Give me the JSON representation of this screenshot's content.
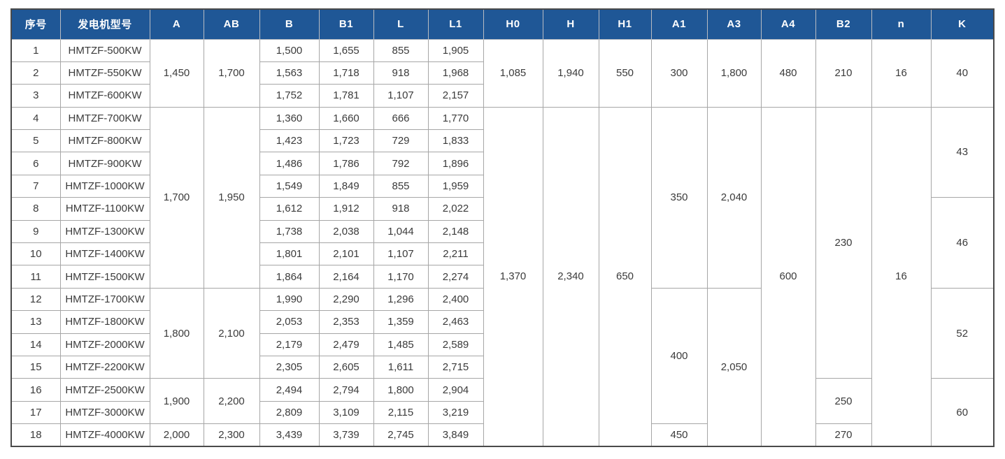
{
  "colors": {
    "header_bg": "#1f5796",
    "header_text": "#ffffff",
    "header_line": "#b8bcc2",
    "grid_line": "#a6a6a6",
    "outer_border": "#4a4a4a",
    "cell_text": "#3b3b3b",
    "cell_bg": "#ffffff"
  },
  "table": {
    "headers": [
      "序号",
      "发电机型号",
      "A",
      "AB",
      "B",
      "B1",
      "L",
      "L1",
      "H0",
      "H",
      "H1",
      "A1",
      "A3",
      "A4",
      "B2",
      "n",
      "K"
    ],
    "rows": [
      [
        {
          "v": "1"
        },
        {
          "v": "HMTZF-500KW"
        },
        {
          "v": "1,450",
          "rs": 3
        },
        {
          "v": "1,700",
          "rs": 3
        },
        {
          "v": "1,500"
        },
        {
          "v": "1,655"
        },
        {
          "v": "855"
        },
        {
          "v": "1,905"
        },
        {
          "v": "1,085",
          "rs": 3
        },
        {
          "v": "1,940",
          "rs": 3
        },
        {
          "v": "550",
          "rs": 3
        },
        {
          "v": "300",
          "rs": 3
        },
        {
          "v": "1,800",
          "rs": 3
        },
        {
          "v": "480",
          "rs": 3
        },
        {
          "v": "210",
          "rs": 3
        },
        {
          "v": "16",
          "rs": 3
        },
        {
          "v": "40",
          "rs": 3
        }
      ],
      [
        {
          "v": "2"
        },
        {
          "v": "HMTZF-550KW"
        },
        {
          "v": "1,563"
        },
        {
          "v": "1,718"
        },
        {
          "v": "918"
        },
        {
          "v": "1,968"
        }
      ],
      [
        {
          "v": "3"
        },
        {
          "v": "HMTZF-600KW"
        },
        {
          "v": "1,752"
        },
        {
          "v": "1,781"
        },
        {
          "v": "1,107"
        },
        {
          "v": "2,157"
        }
      ],
      [
        {
          "v": "4"
        },
        {
          "v": "HMTZF-700KW"
        },
        {
          "v": "1,700",
          "rs": 8
        },
        {
          "v": "1,950",
          "rs": 8
        },
        {
          "v": "1,360"
        },
        {
          "v": "1,660"
        },
        {
          "v": "666"
        },
        {
          "v": "1,770"
        },
        {
          "v": "1,370",
          "rs": 15
        },
        {
          "v": "2,340",
          "rs": 15
        },
        {
          "v": "650",
          "rs": 15
        },
        {
          "v": "350",
          "rs": 8
        },
        {
          "v": "2,040",
          "rs": 8
        },
        {
          "v": "600",
          "rs": 15
        },
        {
          "v": "230",
          "rs": 12
        },
        {
          "v": "16",
          "rs": 15
        },
        {
          "v": "43",
          "rs": 4
        }
      ],
      [
        {
          "v": "5"
        },
        {
          "v": "HMTZF-800KW"
        },
        {
          "v": "1,423"
        },
        {
          "v": "1,723"
        },
        {
          "v": "729"
        },
        {
          "v": "1,833"
        }
      ],
      [
        {
          "v": "6"
        },
        {
          "v": "HMTZF-900KW"
        },
        {
          "v": "1,486"
        },
        {
          "v": "1,786"
        },
        {
          "v": "792"
        },
        {
          "v": "1,896"
        }
      ],
      [
        {
          "v": "7"
        },
        {
          "v": "HMTZF-1000KW"
        },
        {
          "v": "1,549"
        },
        {
          "v": "1,849"
        },
        {
          "v": "855"
        },
        {
          "v": "1,959"
        }
      ],
      [
        {
          "v": "8"
        },
        {
          "v": "HMTZF-1100KW"
        },
        {
          "v": "1,612"
        },
        {
          "v": "1,912"
        },
        {
          "v": "918"
        },
        {
          "v": "2,022"
        },
        {
          "v": "46",
          "rs": 4
        }
      ],
      [
        {
          "v": "9"
        },
        {
          "v": "HMTZF-1300KW"
        },
        {
          "v": "1,738"
        },
        {
          "v": "2,038"
        },
        {
          "v": "1,044"
        },
        {
          "v": "2,148"
        }
      ],
      [
        {
          "v": "10"
        },
        {
          "v": "HMTZF-1400KW"
        },
        {
          "v": "1,801"
        },
        {
          "v": "2,101"
        },
        {
          "v": "1,107"
        },
        {
          "v": "2,211"
        }
      ],
      [
        {
          "v": "11"
        },
        {
          "v": "HMTZF-1500KW"
        },
        {
          "v": "1,864"
        },
        {
          "v": "2,164"
        },
        {
          "v": "1,170"
        },
        {
          "v": "2,274"
        }
      ],
      [
        {
          "v": "12"
        },
        {
          "v": "HMTZF-1700KW"
        },
        {
          "v": "1,800",
          "rs": 4
        },
        {
          "v": "2,100",
          "rs": 4
        },
        {
          "v": "1,990"
        },
        {
          "v": "2,290"
        },
        {
          "v": "1,296"
        },
        {
          "v": "2,400"
        },
        {
          "v": "400",
          "rs": 6
        },
        {
          "v": "2,050",
          "rs": 7
        },
        {
          "v": "52",
          "rs": 4
        }
      ],
      [
        {
          "v": "13"
        },
        {
          "v": "HMTZF-1800KW"
        },
        {
          "v": "2,053"
        },
        {
          "v": "2,353"
        },
        {
          "v": "1,359"
        },
        {
          "v": "2,463"
        }
      ],
      [
        {
          "v": "14"
        },
        {
          "v": "HMTZF-2000KW"
        },
        {
          "v": "2,179"
        },
        {
          "v": "2,479"
        },
        {
          "v": "1,485"
        },
        {
          "v": "2,589"
        }
      ],
      [
        {
          "v": "15"
        },
        {
          "v": "HMTZF-2200KW"
        },
        {
          "v": "2,305"
        },
        {
          "v": "2,605"
        },
        {
          "v": "1,611"
        },
        {
          "v": "2,715"
        }
      ],
      [
        {
          "v": "16"
        },
        {
          "v": "HMTZF-2500KW"
        },
        {
          "v": "1,900",
          "rs": 2
        },
        {
          "v": "2,200",
          "rs": 2
        },
        {
          "v": "2,494"
        },
        {
          "v": "2,794"
        },
        {
          "v": "1,800"
        },
        {
          "v": "2,904"
        },
        {
          "v": "250",
          "rs": 2
        },
        {
          "v": "60",
          "rs": 3
        }
      ],
      [
        {
          "v": "17"
        },
        {
          "v": "HMTZF-3000KW"
        },
        {
          "v": "2,809"
        },
        {
          "v": "3,109"
        },
        {
          "v": "2,115"
        },
        {
          "v": "3,219"
        }
      ],
      [
        {
          "v": "18"
        },
        {
          "v": "HMTZF-4000KW"
        },
        {
          "v": "2,000"
        },
        {
          "v": "2,300"
        },
        {
          "v": "3,439"
        },
        {
          "v": "3,739"
        },
        {
          "v": "2,745"
        },
        {
          "v": "3,849"
        },
        {
          "v": "450"
        },
        {
          "v": "270"
        }
      ]
    ]
  }
}
